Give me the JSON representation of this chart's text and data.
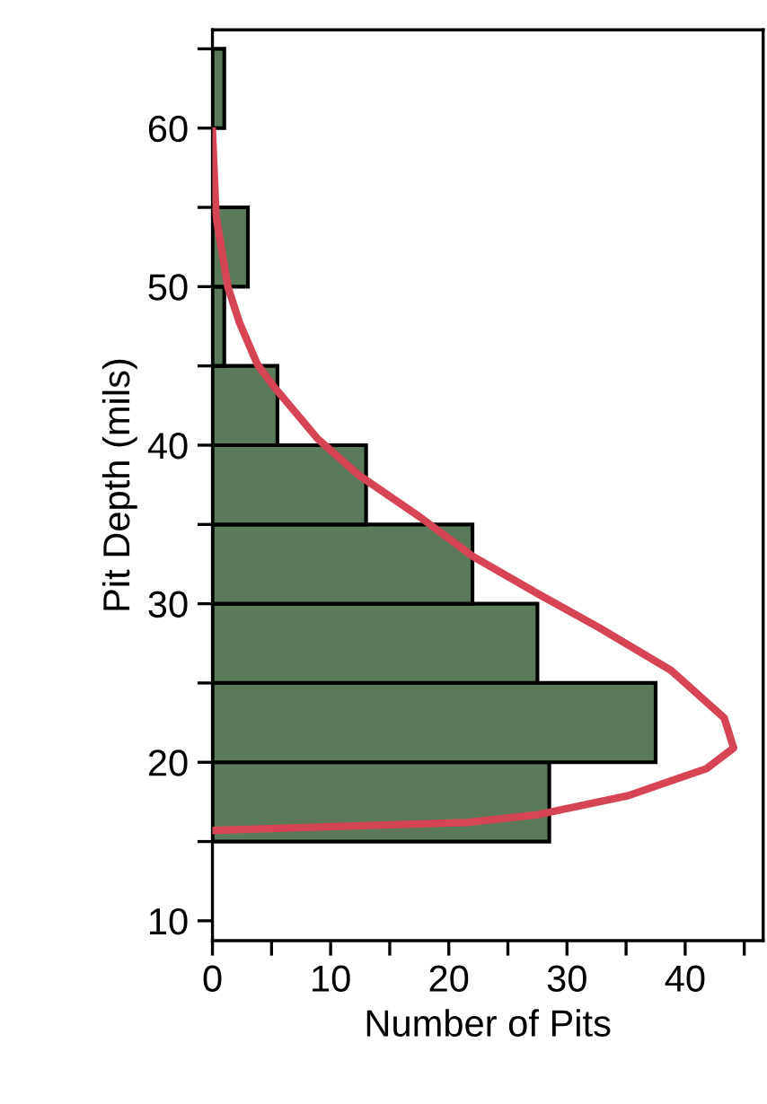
{
  "chart_data": {
    "type": "histogram",
    "orientation": "horizontal",
    "xlabel": "Number of Pits",
    "ylabel": "Pit Depth (mils)",
    "bins": [
      15,
      20,
      25,
      30,
      35,
      40,
      45,
      50,
      55,
      60,
      65
    ],
    "values": [
      28.5,
      37.5,
      27.5,
      22,
      13,
      5.5,
      1,
      3,
      0,
      1
    ],
    "color": "#5b7a5b",
    "series": [
      {
        "type": "line",
        "color": "#d64556",
        "x": [
          15.7,
          16.2,
          16.7,
          17.9,
          19.6,
          20.9,
          22.8,
          25.8,
          28.5,
          30.6,
          33,
          35.5,
          38.1,
          40.4,
          43.6,
          45.1,
          47.7,
          50,
          54.5,
          59.8
        ],
        "values": [
          0,
          21.5,
          27.6,
          35.2,
          41.8,
          44.1,
          43.3,
          38.8,
          32.7,
          27.6,
          22,
          17.5,
          12.4,
          8.9,
          5.3,
          3.8,
          2.3,
          1.3,
          0.3,
          0
        ]
      }
    ],
    "xlim": [
      0,
      46.6
    ],
    "ylim": [
      8.75,
      66.2
    ],
    "xticks": [
      0,
      {
        "value": 5,
        "label": null
      },
      10,
      {
        "value": 15,
        "label": null
      },
      20,
      {
        "value": 25,
        "label": null
      },
      30,
      {
        "value": 35,
        "label": null
      },
      40,
      {
        "value": 45,
        "label": null
      }
    ],
    "yticks": [
      10,
      {
        "value": 15,
        "label": null
      },
      20,
      {
        "value": 25,
        "label": null
      },
      30,
      {
        "value": 35,
        "label": null
      },
      40,
      {
        "value": 45,
        "label": null
      },
      50,
      {
        "value": 55,
        "label": null
      },
      60,
      {
        "value": 65,
        "label": null
      }
    ],
    "grid": false
  }
}
